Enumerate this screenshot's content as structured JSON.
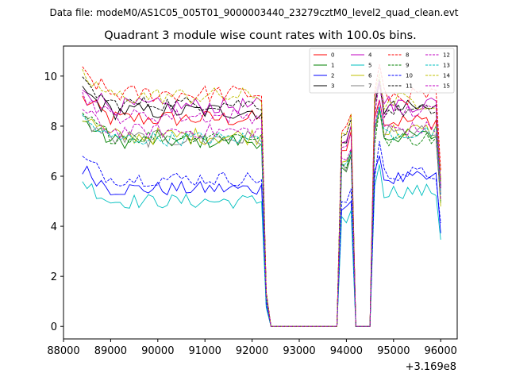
{
  "header": {
    "datafile": "Data file: modeM0/AS1C05_005T01_9000003440_23279cztM0_level2_quad_clean.evt"
  },
  "chart_data": {
    "type": "line",
    "title": "Quadrant 3 module wise count rates with 100.0s bins.",
    "xlabel": "",
    "ylabel": "",
    "x_offset_label": "+3.169e8",
    "xlim": [
      88000,
      96350
    ],
    "ylim": [
      -0.5,
      11.2
    ],
    "x_ticks": [
      88000,
      89000,
      90000,
      91000,
      92000,
      93000,
      94000,
      95000,
      96000
    ],
    "x_tick_labels": [
      "88000",
      "89000",
      "90000",
      "91000",
      "92000",
      "93000",
      "94000",
      "95000",
      "96000"
    ],
    "y_ticks": [
      0,
      2,
      4,
      6,
      8,
      10
    ],
    "y_tick_labels": [
      "0",
      "2",
      "4",
      "6",
      "8",
      "10"
    ],
    "legend_position": "top-right",
    "bin_seconds": 100,
    "segments": [
      {
        "start": 88400,
        "end": 92200
      },
      {
        "start": 92350,
        "end": 93850
      },
      {
        "start": 93950,
        "end": 94100
      },
      {
        "start": 94150,
        "end": 94500
      },
      {
        "start": 94550,
        "end": 96000
      }
    ],
    "gaps_after_index": [],
    "series": [
      {
        "name": "0",
        "color": "#ff0000",
        "dash": "solid",
        "level1": 8.3,
        "level2": 8.2,
        "noise": 0.35
      },
      {
        "name": "1",
        "color": "#008000",
        "dash": "solid",
        "level1": 7.4,
        "level2": 7.6,
        "noise": 0.3
      },
      {
        "name": "2",
        "color": "#0000ff",
        "dash": "solid",
        "level1": 5.5,
        "level2": 5.9,
        "noise": 0.3
      },
      {
        "name": "3",
        "color": "#000000",
        "dash": "solid",
        "level1": 8.6,
        "level2": 8.7,
        "noise": 0.35
      },
      {
        "name": "4",
        "color": "#c000c0",
        "dash": "solid",
        "level1": 8.8,
        "level2": 8.9,
        "noise": 0.35
      },
      {
        "name": "5",
        "color": "#00bfbf",
        "dash": "solid",
        "level1": 5.0,
        "level2": 5.4,
        "noise": 0.3
      },
      {
        "name": "6",
        "color": "#bfbf00",
        "dash": "solid",
        "level1": 7.6,
        "level2": 7.8,
        "noise": 0.35
      },
      {
        "name": "7",
        "color": "#808080",
        "dash": "solid",
        "level1": 7.5,
        "level2": 7.7,
        "noise": 0.35
      },
      {
        "name": "8",
        "color": "#ff0000",
        "dash": "dashed",
        "level1": 9.3,
        "level2": 9.2,
        "noise": 0.35
      },
      {
        "name": "9",
        "color": "#008000",
        "dash": "dashed",
        "level1": 7.6,
        "level2": 7.5,
        "noise": 0.3
      },
      {
        "name": "10",
        "color": "#0000ff",
        "dash": "dashed",
        "level1": 5.9,
        "level2": 6.1,
        "noise": 0.3
      },
      {
        "name": "11",
        "color": "#000000",
        "dash": "dashed",
        "level1": 8.9,
        "level2": 8.6,
        "noise": 0.3
      },
      {
        "name": "12",
        "color": "#c000c0",
        "dash": "dashed",
        "level1": 7.8,
        "level2": 7.9,
        "noise": 0.3
      },
      {
        "name": "13",
        "color": "#00bfbf",
        "dash": "dashed",
        "level1": 7.5,
        "level2": 7.7,
        "noise": 0.3
      },
      {
        "name": "14",
        "color": "#bfbf00",
        "dash": "dashed",
        "level1": 9.2,
        "level2": 9.0,
        "noise": 0.35
      },
      {
        "name": "15",
        "color": "#c000c0",
        "dash": "dashed",
        "level1": 8.4,
        "level2": 8.6,
        "noise": 0.3
      }
    ]
  }
}
